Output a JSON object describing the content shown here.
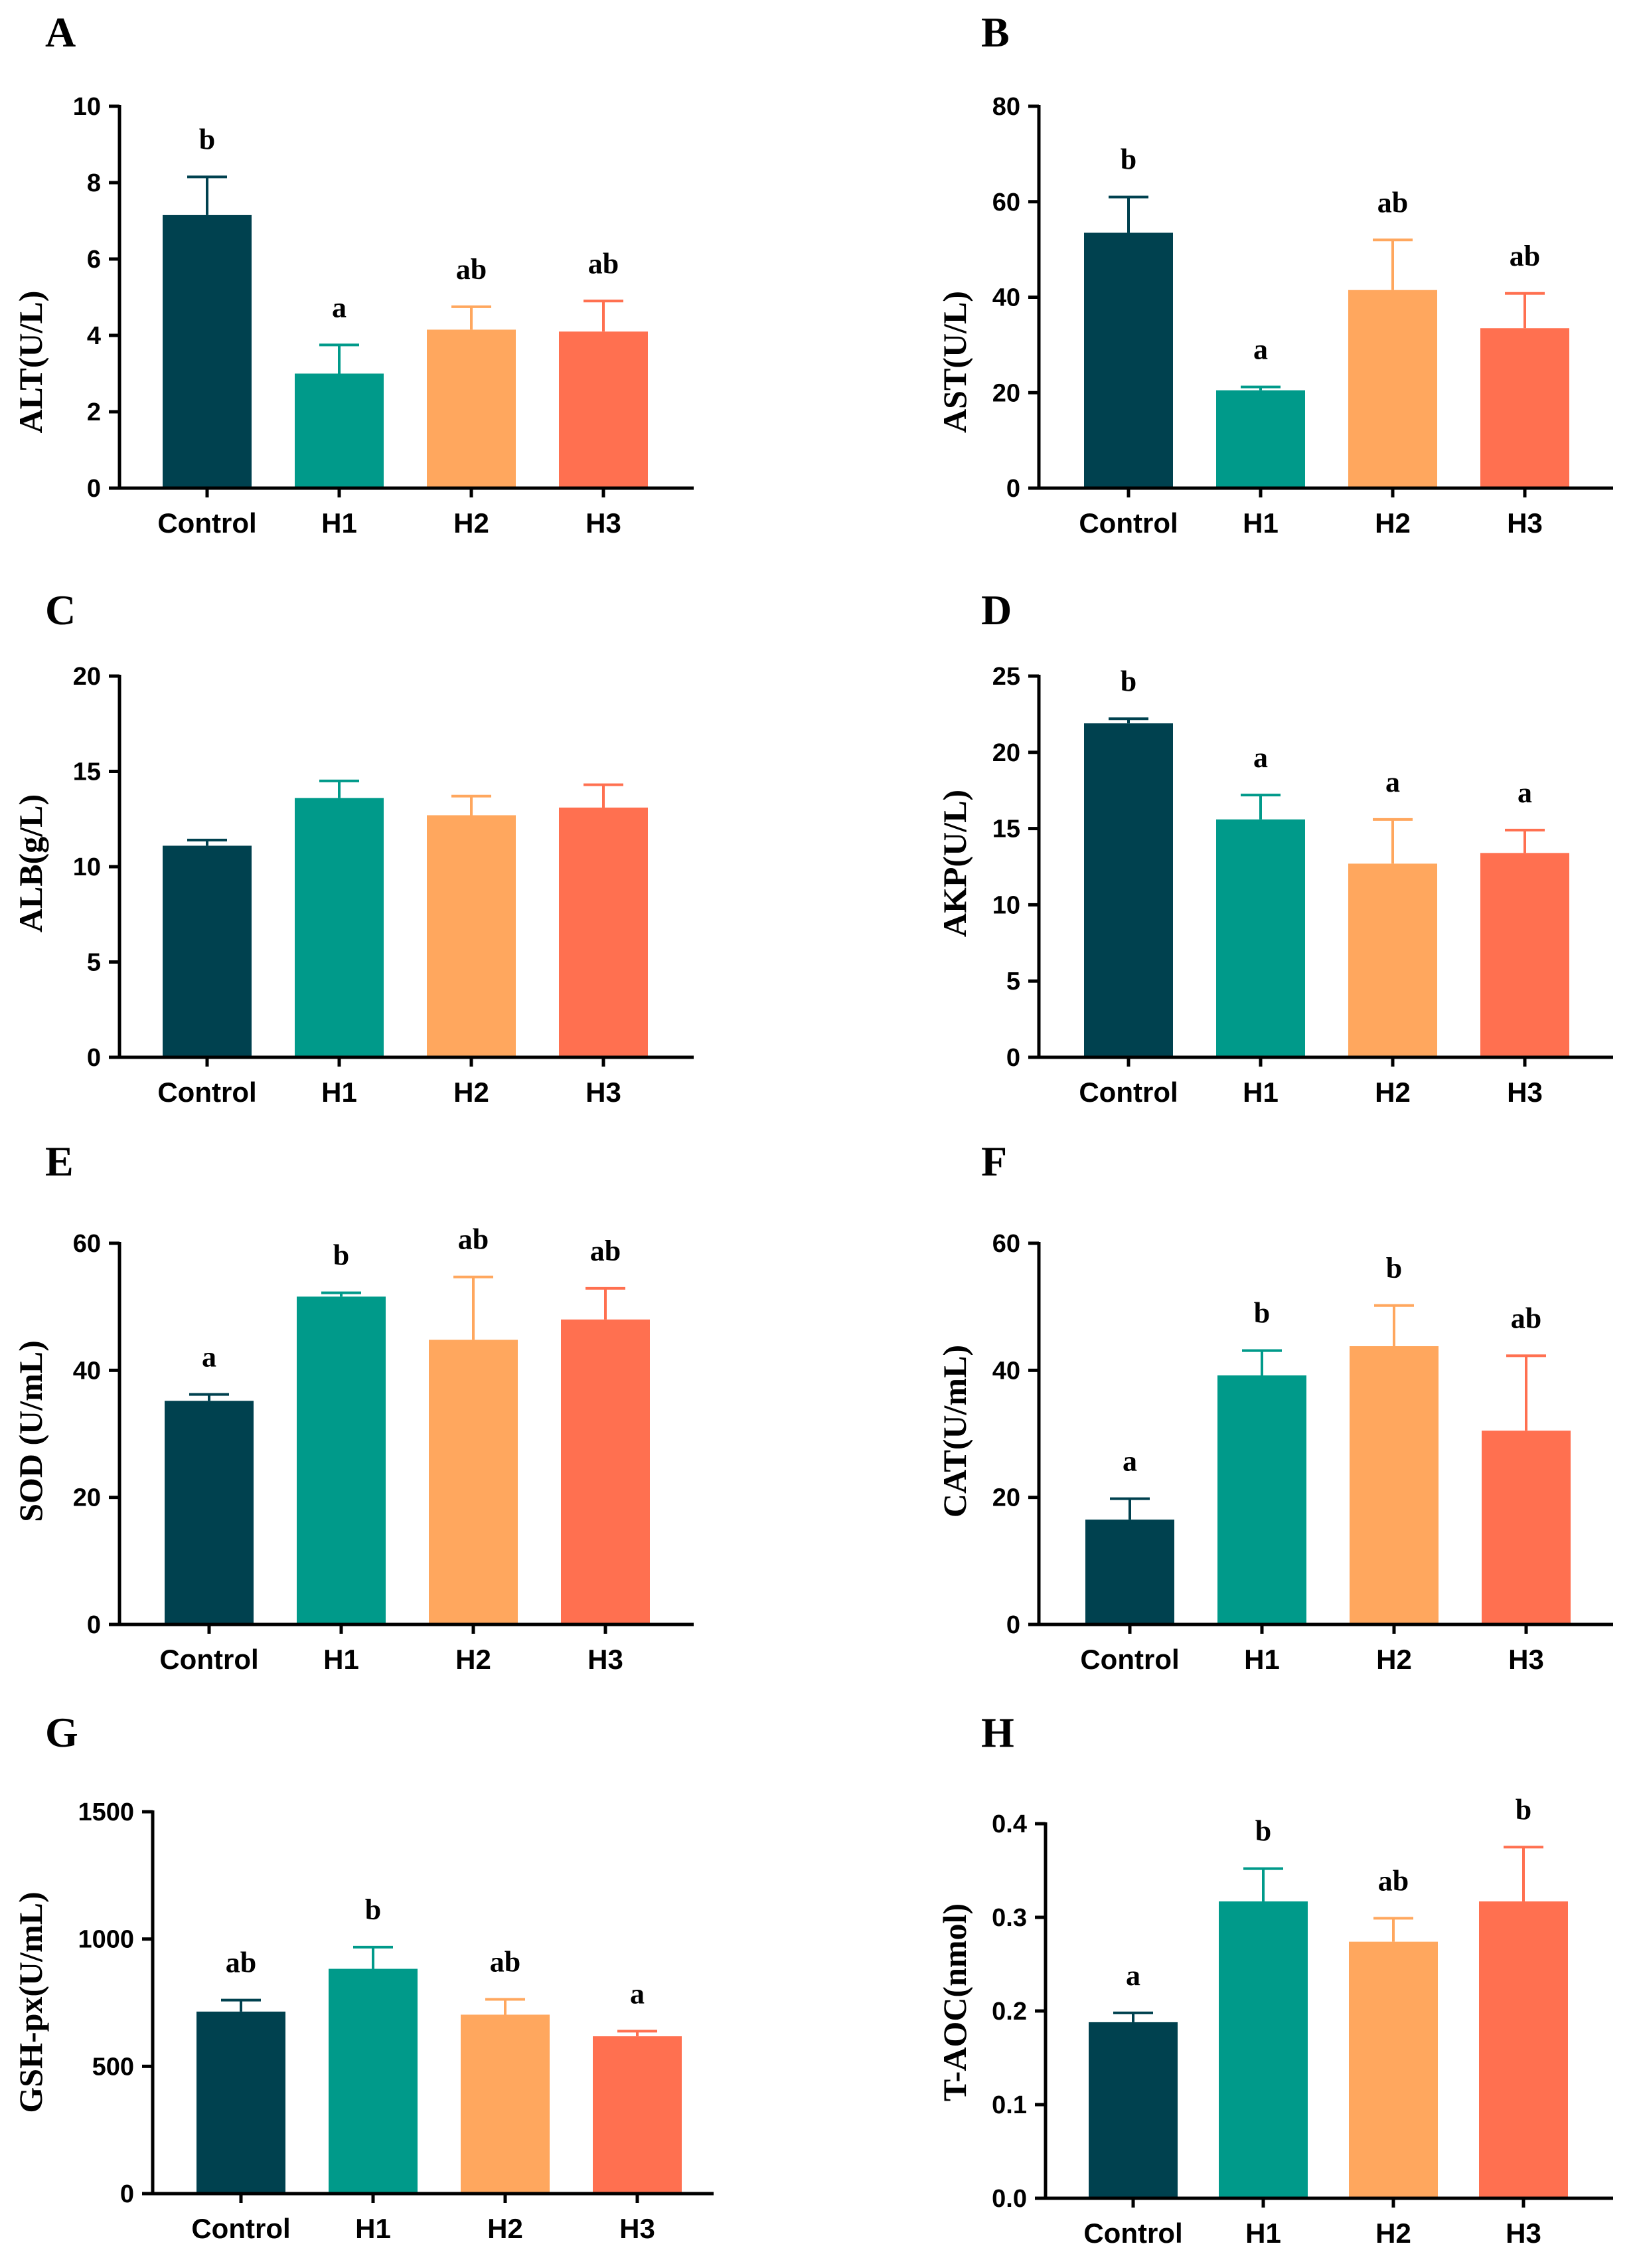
{
  "colors": {
    "Control": "#00414f",
    "H1": "#009a8a",
    "H2": "#ffa75e",
    "H3": "#ff7050"
  },
  "chart_data": [
    {
      "type": "bar",
      "panel": "A",
      "ylabel": "ALT(U/L)",
      "categories": [
        "Control",
        "H1",
        "H2",
        "H3"
      ],
      "values": [
        7.15,
        3.0,
        4.15,
        4.1
      ],
      "errors": [
        1.0,
        0.75,
        0.6,
        0.8
      ],
      "significance": [
        "b",
        "a",
        "ab",
        "ab"
      ],
      "ylim": [
        0,
        10
      ],
      "yticks": [
        0,
        2,
        4,
        6,
        8,
        10
      ],
      "ytick_labels": [
        "0",
        "2",
        "4",
        "6",
        "8",
        "10"
      ]
    },
    {
      "type": "bar",
      "panel": "B",
      "ylabel": "AST(U/L)",
      "categories": [
        "Control",
        "H1",
        "H2",
        "H3"
      ],
      "values": [
        53.5,
        20.5,
        41.5,
        33.5
      ],
      "errors": [
        7.5,
        0.7,
        10.5,
        7.3
      ],
      "significance": [
        "b",
        "a",
        "ab",
        "ab"
      ],
      "ylim": [
        0,
        80
      ],
      "yticks": [
        0,
        20,
        40,
        60,
        80
      ],
      "ytick_labels": [
        "0",
        "20",
        "40",
        "60",
        "80"
      ]
    },
    {
      "type": "bar",
      "panel": "C",
      "ylabel": "ALB(g/L)",
      "categories": [
        "Control",
        "H1",
        "H2",
        "H3"
      ],
      "values": [
        11.1,
        13.6,
        12.7,
        13.1
      ],
      "errors": [
        0.3,
        0.9,
        1.0,
        1.2
      ],
      "significance": [
        "",
        "",
        "",
        ""
      ],
      "ylim": [
        0,
        20
      ],
      "yticks": [
        0,
        5,
        10,
        15,
        20
      ],
      "ytick_labels": [
        "0",
        "5",
        "10",
        "15",
        "20"
      ]
    },
    {
      "type": "bar",
      "panel": "D",
      "ylabel": "AKP(U/L)",
      "categories": [
        "Control",
        "H1",
        "H2",
        "H3"
      ],
      "values": [
        21.9,
        15.6,
        12.7,
        13.4
      ],
      "errors": [
        0.3,
        1.6,
        2.9,
        1.5
      ],
      "significance": [
        "b",
        "a",
        "a",
        "a"
      ],
      "ylim": [
        0,
        25
      ],
      "yticks": [
        0,
        5,
        10,
        15,
        20,
        25
      ],
      "ytick_labels": [
        "0",
        "5",
        "10",
        "15",
        "20",
        "25"
      ]
    },
    {
      "type": "bar",
      "panel": "E",
      "ylabel": "SOD (U/mL)",
      "categories": [
        "Control",
        "H1",
        "H2",
        "H3"
      ],
      "values": [
        35.2,
        51.6,
        44.8,
        48.0
      ],
      "errors": [
        1.0,
        0.6,
        9.9,
        4.9
      ],
      "significance": [
        "a",
        "b",
        "ab",
        "ab"
      ],
      "ylim": [
        0,
        60
      ],
      "yticks": [
        0,
        20,
        40,
        60
      ],
      "ytick_labels": [
        "0",
        "20",
        "40",
        "60"
      ]
    },
    {
      "type": "bar",
      "panel": "F",
      "ylabel": "CAT(U/mL)",
      "categories": [
        "Control",
        "H1",
        "H2",
        "H3"
      ],
      "values": [
        16.5,
        39.2,
        43.8,
        30.5
      ],
      "errors": [
        3.3,
        3.9,
        6.4,
        11.8
      ],
      "significance": [
        "a",
        "b",
        "b",
        "ab"
      ],
      "ylim": [
        0,
        60
      ],
      "yticks": [
        0,
        20,
        40,
        60
      ],
      "ytick_labels": [
        "0",
        "20",
        "40",
        "60"
      ]
    },
    {
      "type": "bar",
      "panel": "G",
      "ylabel": "GSH-px(U/mL)",
      "categories": [
        "Control",
        "H1",
        "H2",
        "H3"
      ],
      "values": [
        715,
        883,
        703,
        618
      ],
      "errors": [
        45,
        85,
        60,
        20
      ],
      "significance": [
        "ab",
        "b",
        "ab",
        "a"
      ],
      "ylim": [
        0,
        1500
      ],
      "yticks": [
        0,
        500,
        1000,
        1500
      ],
      "ytick_labels": [
        "0",
        "500",
        "1000",
        "1500"
      ]
    },
    {
      "type": "bar",
      "panel": "H",
      "ylabel": "T-AOC(nmol)",
      "categories": [
        "Control",
        "H1",
        "H2",
        "H3"
      ],
      "values": [
        0.188,
        0.317,
        0.274,
        0.317
      ],
      "errors": [
        0.01,
        0.035,
        0.025,
        0.058
      ],
      "significance": [
        "a",
        "b",
        "ab",
        "b"
      ],
      "ylim": [
        0,
        0.4
      ],
      "yticks": [
        0,
        0.1,
        0.2,
        0.3,
        0.4
      ],
      "ytick_labels": [
        "0.0",
        "0.1",
        "0.2",
        "0.3",
        "0.4"
      ]
    }
  ]
}
